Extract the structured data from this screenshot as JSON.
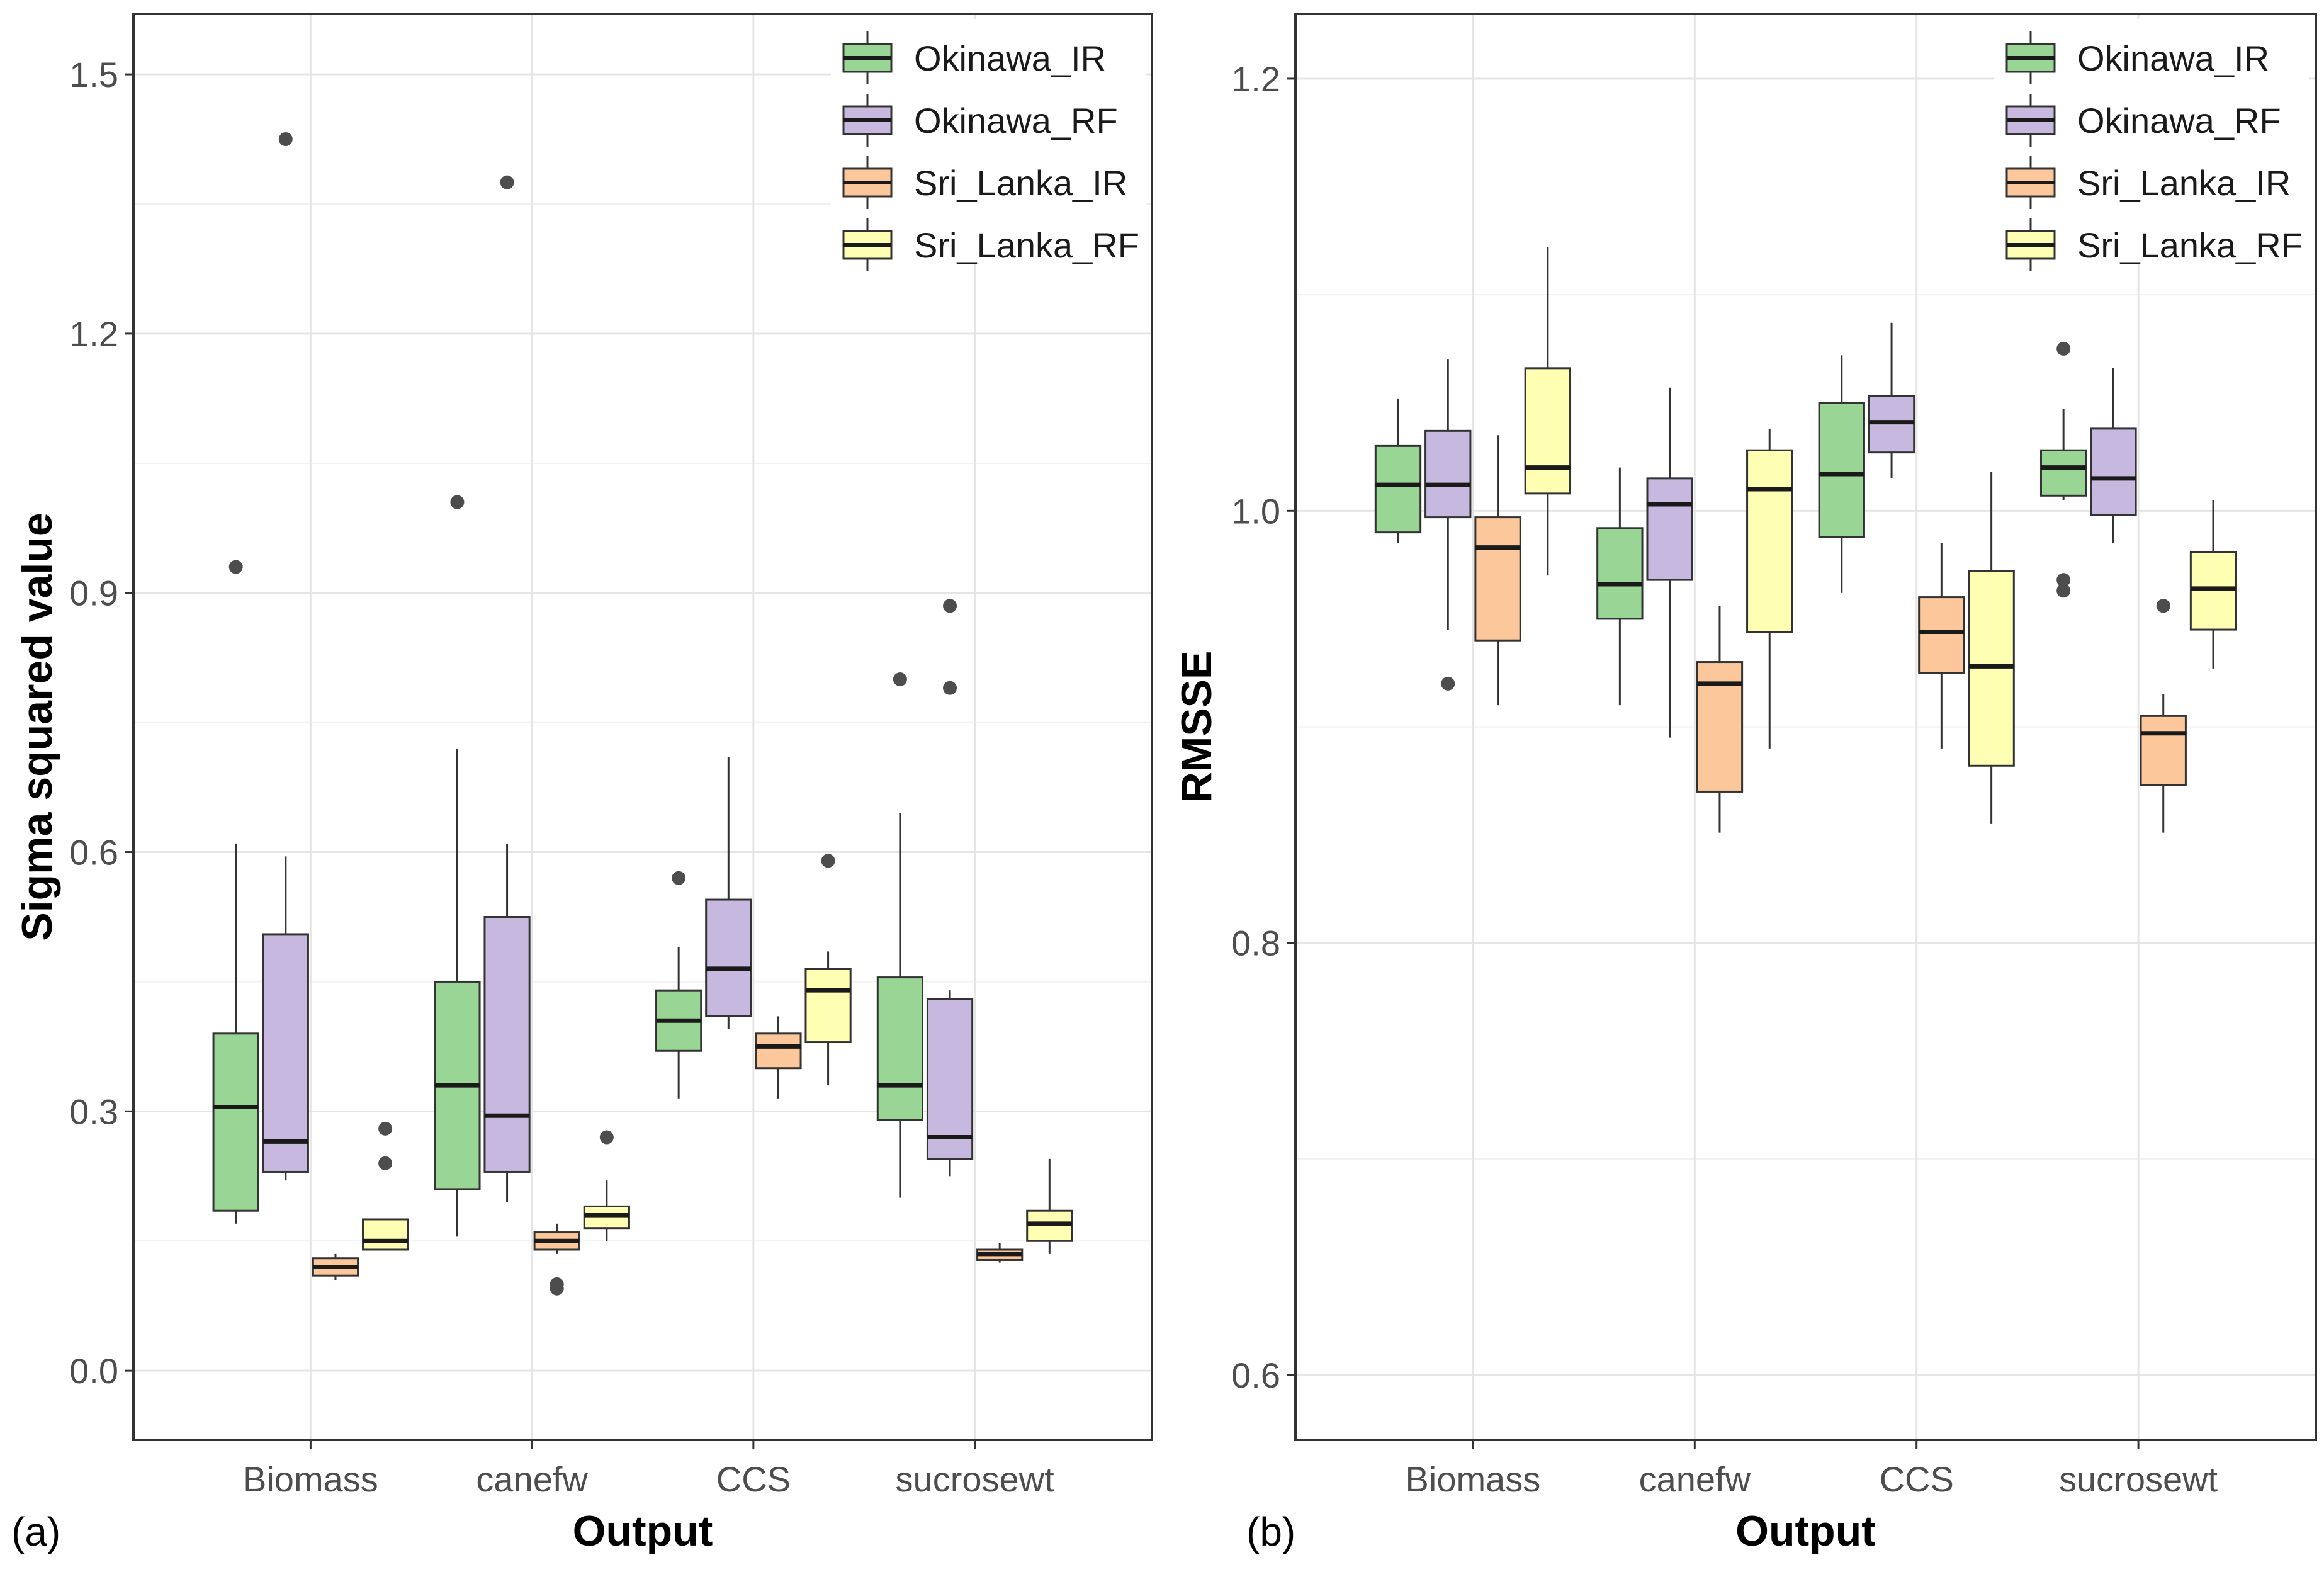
{
  "chart_data": [
    {
      "type": "box",
      "panel_label": "(a)",
      "xlabel": "Output",
      "ylabel": "Sigma squared value",
      "ylim": [
        -0.08,
        1.57
      ],
      "yticks": [
        0.0,
        0.3,
        0.6,
        0.9,
        1.2,
        1.5
      ],
      "ytick_labels": [
        "0.0",
        "0.3",
        "0.6",
        "0.9",
        "1.2",
        "1.5"
      ],
      "categories": [
        "Biomass",
        "canefw",
        "CCS",
        "sucrosewt"
      ],
      "legend_position": "top-right",
      "series": [
        {
          "name": "Okinawa_IR",
          "color": "#99d594",
          "boxes": [
            {
              "lower": 0.17,
              "q1": 0.185,
              "median": 0.305,
              "q3": 0.39,
              "upper": 0.61,
              "outliers": [
                0.93
              ]
            },
            {
              "lower": 0.155,
              "q1": 0.21,
              "median": 0.33,
              "q3": 0.45,
              "upper": 0.72,
              "outliers": [
                1.005
              ]
            },
            {
              "lower": 0.315,
              "q1": 0.37,
              "median": 0.405,
              "q3": 0.44,
              "upper": 0.49,
              "outliers": [
                0.57
              ]
            },
            {
              "lower": 0.2,
              "q1": 0.29,
              "median": 0.33,
              "q3": 0.455,
              "upper": 0.645,
              "outliers": [
                0.8
              ]
            }
          ]
        },
        {
          "name": "Okinawa_RF",
          "color": "#c7b8e0",
          "boxes": [
            {
              "lower": 0.22,
              "q1": 0.23,
              "median": 0.265,
              "q3": 0.505,
              "upper": 0.595,
              "outliers": [
                1.425
              ]
            },
            {
              "lower": 0.195,
              "q1": 0.23,
              "median": 0.295,
              "q3": 0.525,
              "upper": 0.61,
              "outliers": [
                1.375
              ]
            },
            {
              "lower": 0.395,
              "q1": 0.41,
              "median": 0.465,
              "q3": 0.545,
              "upper": 0.71,
              "outliers": []
            },
            {
              "lower": 0.225,
              "q1": 0.245,
              "median": 0.27,
              "q3": 0.43,
              "upper": 0.44,
              "outliers": [
                0.885,
                0.79
              ]
            }
          ]
        },
        {
          "name": "Sri_Lanka_IR",
          "color": "#fcc89b",
          "boxes": [
            {
              "lower": 0.105,
              "q1": 0.11,
              "median": 0.12,
              "q3": 0.13,
              "upper": 0.135,
              "outliers": []
            },
            {
              "lower": 0.135,
              "q1": 0.14,
              "median": 0.15,
              "q3": 0.16,
              "upper": 0.17,
              "outliers": [
                0.1,
                0.095
              ]
            },
            {
              "lower": 0.315,
              "q1": 0.35,
              "median": 0.375,
              "q3": 0.39,
              "upper": 0.41,
              "outliers": []
            },
            {
              "lower": 0.125,
              "q1": 0.128,
              "median": 0.135,
              "q3": 0.14,
              "upper": 0.148,
              "outliers": []
            }
          ]
        },
        {
          "name": "Sri_Lanka_RF",
          "color": "#ffffb3",
          "boxes": [
            {
              "lower": 0.14,
              "q1": 0.14,
              "median": 0.15,
              "q3": 0.175,
              "upper": 0.175,
              "outliers": [
                0.28,
                0.24
              ]
            },
            {
              "lower": 0.15,
              "q1": 0.165,
              "median": 0.18,
              "q3": 0.19,
              "upper": 0.22,
              "outliers": [
                0.27
              ]
            },
            {
              "lower": 0.33,
              "q1": 0.38,
              "median": 0.44,
              "q3": 0.465,
              "upper": 0.485,
              "outliers": [
                0.59
              ]
            },
            {
              "lower": 0.135,
              "q1": 0.15,
              "median": 0.17,
              "q3": 0.185,
              "upper": 0.245,
              "outliers": []
            }
          ]
        }
      ]
    },
    {
      "type": "box",
      "panel_label": "(b)",
      "xlabel": "Output",
      "ylabel": "RMSSE",
      "ylim": [
        0.57,
        1.23
      ],
      "yticks": [
        0.6,
        0.8,
        1.0,
        1.2
      ],
      "ytick_labels": [
        "0.6",
        "0.8",
        "1.0",
        "1.2"
      ],
      "categories": [
        "Biomass",
        "canefw",
        "CCS",
        "sucrosewt"
      ],
      "legend_position": "top-right",
      "series": [
        {
          "name": "Okinawa_IR",
          "color": "#99d594",
          "boxes": [
            {
              "lower": 0.985,
              "q1": 0.99,
              "median": 1.012,
              "q3": 1.03,
              "upper": 1.052,
              "outliers": []
            },
            {
              "lower": 0.91,
              "q1": 0.95,
              "median": 0.966,
              "q3": 0.992,
              "upper": 1.02,
              "outliers": []
            },
            {
              "lower": 0.962,
              "q1": 0.988,
              "median": 1.017,
              "q3": 1.05,
              "upper": 1.072,
              "outliers": []
            },
            {
              "lower": 1.005,
              "q1": 1.007,
              "median": 1.02,
              "q3": 1.028,
              "upper": 1.047,
              "outliers": [
                1.075,
                0.968,
                0.963
              ]
            }
          ]
        },
        {
          "name": "Okinawa_RF",
          "color": "#c7b8e0",
          "boxes": [
            {
              "lower": 0.945,
              "q1": 0.997,
              "median": 1.012,
              "q3": 1.037,
              "upper": 1.07,
              "outliers": [
                0.92
              ]
            },
            {
              "lower": 0.895,
              "q1": 0.968,
              "median": 1.003,
              "q3": 1.015,
              "upper": 1.057,
              "outliers": []
            },
            {
              "lower": 1.015,
              "q1": 1.027,
              "median": 1.041,
              "q3": 1.053,
              "upper": 1.087,
              "outliers": []
            },
            {
              "lower": 0.985,
              "q1": 0.998,
              "median": 1.015,
              "q3": 1.038,
              "upper": 1.066,
              "outliers": []
            }
          ]
        },
        {
          "name": "Sri_Lanka_IR",
          "color": "#fcc89b",
          "boxes": [
            {
              "lower": 0.91,
              "q1": 0.94,
              "median": 0.983,
              "q3": 0.997,
              "upper": 1.035,
              "outliers": []
            },
            {
              "lower": 0.851,
              "q1": 0.87,
              "median": 0.92,
              "q3": 0.93,
              "upper": 0.956,
              "outliers": []
            },
            {
              "lower": 0.89,
              "q1": 0.925,
              "median": 0.944,
              "q3": 0.96,
              "upper": 0.985,
              "outliers": []
            },
            {
              "lower": 0.851,
              "q1": 0.873,
              "median": 0.897,
              "q3": 0.905,
              "upper": 0.915,
              "outliers": [
                0.956
              ]
            }
          ]
        },
        {
          "name": "Sri_Lanka_RF",
          "color": "#ffffb3",
          "boxes": [
            {
              "lower": 0.97,
              "q1": 1.008,
              "median": 1.02,
              "q3": 1.066,
              "upper": 1.122,
              "outliers": []
            },
            {
              "lower": 0.89,
              "q1": 0.944,
              "median": 1.01,
              "q3": 1.028,
              "upper": 1.038,
              "outliers": []
            },
            {
              "lower": 0.855,
              "q1": 0.882,
              "median": 0.928,
              "q3": 0.972,
              "upper": 1.018,
              "outliers": []
            },
            {
              "lower": 0.927,
              "q1": 0.945,
              "median": 0.964,
              "q3": 0.981,
              "upper": 1.005,
              "outliers": []
            }
          ]
        }
      ]
    }
  ]
}
